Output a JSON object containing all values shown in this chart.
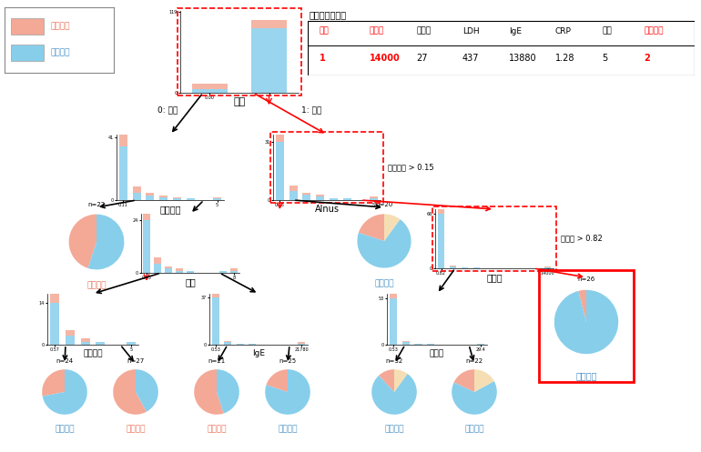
{
  "bg_color": "#FFFFFF",
  "salmon": "#F4A896",
  "blue": "#87CEEB",
  "dark_orange": "#E8735A",
  "dark_blue": "#4A90C4",
  "legend_labels": [
    "早期寛解",
    "残存傾向"
  ],
  "patient_table_title": "患者の検査数値",
  "patient_table_headers": [
    "性別",
    "白血球",
    "好酸球",
    "LDH",
    "IgE",
    "CRP",
    "スギ",
    "ハンノキ"
  ],
  "patient_table_values": [
    "1",
    "14000",
    "27",
    "437",
    "13880",
    "1.28",
    "5",
    "2"
  ],
  "patient_red_cols": [
    0,
    1,
    7
  ],
  "FW": 770,
  "FH": 497
}
